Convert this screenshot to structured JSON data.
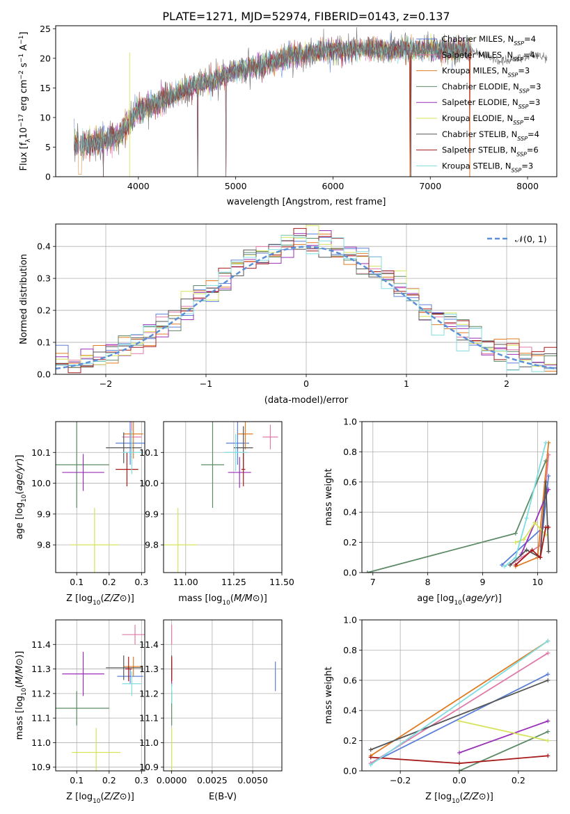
{
  "figure": {
    "title": "PLATE=1271, MJD=52974, FIBERID=0143, z=0.137"
  },
  "colors": {
    "Chabrier MILES": "#5b7fd8",
    "Salpeter MILES": "#e07aa8",
    "Kroupa MILES": "#e07b22",
    "Chabrier ELODIE": "#5c8a66",
    "Salpeter ELODIE": "#9a2fb8",
    "Kroupa ELODIE": "#d6e35a",
    "Chabrier STELIB": "#555555",
    "Salpeter STELIB": "#a81a1a",
    "Kroupa STELIB": "#7fdde0"
  },
  "legend_spectrum": [
    {
      "base": "Chabrier MILES, N",
      "sub": "SSP",
      "tail": "=4",
      "model": "Chabrier MILES"
    },
    {
      "base": "Salpeter MILES, N",
      "sub": "SSP",
      "tail": "=4",
      "model": "Salpeter MILES"
    },
    {
      "base": "Kroupa MILES, N",
      "sub": "SSP",
      "tail": "=3",
      "model": "Kroupa MILES"
    },
    {
      "base": "Chabrier ELODIE, N",
      "sub": "SSP",
      "tail": "=3",
      "model": "Chabrier ELODIE"
    },
    {
      "base": "Salpeter ELODIE, N",
      "sub": "SSP",
      "tail": "=3",
      "model": "Salpeter ELODIE"
    },
    {
      "base": "Kroupa ELODIE, N",
      "sub": "SSP",
      "tail": "=4",
      "model": "Kroupa ELODIE"
    },
    {
      "base": "Chabrier STELIB, N",
      "sub": "SSP",
      "tail": "=4",
      "model": "Chabrier STELIB"
    },
    {
      "base": "Salpeter STELIB, N",
      "sub": "SSP",
      "tail": "=6",
      "model": "Salpeter STELIB"
    },
    {
      "base": "Kroupa STELIB, N",
      "sub": "SSP",
      "tail": "=3",
      "model": "Kroupa STELIB"
    }
  ],
  "chart_data": [
    {
      "id": "spectrum",
      "type": "line",
      "xlabel": "wavelength [Angstrom, rest frame]",
      "ylabel_parts": [
        "Flux [f",
        "λ",
        "10",
        "−17",
        " erg cm",
        "−2",
        " s",
        "−1",
        " A",
        "−1",
        "]"
      ],
      "xlim": [
        3150,
        8300
      ],
      "ylim": [
        0,
        25.5
      ],
      "xticks": [
        4000,
        5000,
        6000,
        7000,
        8000
      ],
      "yticks": [
        0,
        5,
        10,
        15,
        20,
        25
      ],
      "grid": false,
      "legend_position": "top-right",
      "continuum_knots": [
        [
          3340,
          5.5
        ],
        [
          3500,
          5.5
        ],
        [
          3600,
          6
        ],
        [
          3700,
          6.5
        ],
        [
          3800,
          7
        ],
        [
          3900,
          9
        ],
        [
          4000,
          11
        ],
        [
          4200,
          12.5
        ],
        [
          4400,
          14
        ],
        [
          4600,
          15.5
        ],
        [
          4800,
          16.5
        ],
        [
          5000,
          17.8
        ],
        [
          5200,
          18.5
        ],
        [
          5400,
          19.5
        ],
        [
          5600,
          20.5
        ],
        [
          5800,
          21
        ],
        [
          6000,
          21.5
        ],
        [
          6200,
          21.5
        ],
        [
          6400,
          21.5
        ],
        [
          6600,
          21.5
        ],
        [
          6800,
          21.5
        ],
        [
          7000,
          21.5
        ],
        [
          7200,
          21.5
        ],
        [
          7400,
          21.5
        ]
      ],
      "observed_extension": [
        [
          7400,
          21.5
        ],
        [
          7600,
          20.5
        ],
        [
          7700,
          19.5
        ],
        [
          7800,
          19.5
        ],
        [
          7900,
          20
        ],
        [
          8000,
          20.5
        ],
        [
          8100,
          20.5
        ],
        [
          8200,
          20
        ]
      ]
    },
    {
      "id": "residuals",
      "type": "line",
      "xlabel": "(data-model)/error",
      "ylabel": "Normed distribution",
      "xlim": [
        -2.5,
        2.5
      ],
      "ylim": [
        0,
        0.47
      ],
      "xticks": [
        -2,
        -1,
        0,
        1,
        2
      ],
      "yticks": [
        0.0,
        0.1,
        0.2,
        0.3,
        0.4
      ],
      "grid": true,
      "legend": "𝒩(0, 1)",
      "legend_position": "top-right",
      "reference": {
        "name": "𝒩(0, 1)",
        "mean": 0,
        "sigma": 1,
        "color": "#5b8fd8"
      }
    },
    {
      "id": "Z-age",
      "type": "scatter",
      "xlabel": "Z [log10(Z/Z⊙)]",
      "ylabel": "age [log10(age/yr)]",
      "xlim": [
        0.035,
        0.31
      ],
      "ylim": [
        9.71,
        10.2
      ],
      "xticks": [
        0.1,
        0.2,
        0.3
      ],
      "yticks": [
        9.8,
        9.9,
        10.0,
        10.1
      ],
      "grid": true,
      "points": [
        {
          "model": "Chabrier MILES",
          "x": 0.265,
          "y": 10.13,
          "xerr": 0.045,
          "yerr": 0.07
        },
        {
          "model": "Salpeter MILES",
          "x": 0.27,
          "y": 10.15,
          "xerr": 0.03,
          "yerr": 0.07
        },
        {
          "model": "Kroupa MILES",
          "x": 0.275,
          "y": 10.16,
          "xerr": 0.03,
          "yerr": 0.08
        },
        {
          "model": "Chabrier ELODIE",
          "x": 0.1,
          "y": 10.06,
          "xerr": 0.1,
          "yerr": 0.14
        },
        {
          "model": "Salpeter ELODIE",
          "x": 0.12,
          "y": 10.035,
          "xerr": 0.065,
          "yerr": 0.06
        },
        {
          "model": "Kroupa ELODIE",
          "x": 0.155,
          "y": 9.8,
          "xerr": 0.075,
          "yerr": 0.12
        },
        {
          "model": "Chabrier STELIB",
          "x": 0.245,
          "y": 10.115,
          "xerr": 0.055,
          "yerr": 0.05
        },
        {
          "model": "Salpeter STELIB",
          "x": 0.255,
          "y": 10.045,
          "xerr": 0.035,
          "yerr": 0.055
        },
        {
          "model": "Kroupa STELIB",
          "x": 0.27,
          "y": 10.1,
          "xerr": 0.03,
          "yerr": 0.07
        }
      ]
    },
    {
      "id": "mass-age",
      "type": "scatter",
      "xlabel": "mass [log10(M/M⊙)]",
      "ylabel": "",
      "xlim": [
        10.885,
        11.5
      ],
      "ylim": [
        9.71,
        10.2
      ],
      "xticks": [
        11.0,
        11.25,
        11.5
      ],
      "yticks": [
        9.8,
        9.9,
        10.0,
        10.1
      ],
      "grid": true,
      "points": [
        {
          "model": "Chabrier MILES",
          "x": 11.27,
          "y": 10.13,
          "xerr": 0.06,
          "yerr": 0.07
        },
        {
          "model": "Salpeter MILES",
          "x": 11.44,
          "y": 10.15,
          "xerr": 0.04,
          "yerr": 0.04
        },
        {
          "model": "Kroupa MILES",
          "x": 11.31,
          "y": 10.16,
          "xerr": 0.04,
          "yerr": 0.05
        },
        {
          "model": "Chabrier ELODIE",
          "x": 11.14,
          "y": 10.06,
          "xerr": 0.06,
          "yerr": 0.14
        },
        {
          "model": "Salpeter ELODIE",
          "x": 11.28,
          "y": 10.035,
          "xerr": 0.06,
          "yerr": 0.05
        },
        {
          "model": "Kroupa ELODIE",
          "x": 10.96,
          "y": 9.8,
          "xerr": 0.1,
          "yerr": 0.12
        },
        {
          "model": "Chabrier STELIB",
          "x": 11.3,
          "y": 10.115,
          "xerr": 0.05,
          "yerr": 0.07
        },
        {
          "model": "Salpeter STELIB",
          "x": 11.3,
          "y": 10.045,
          "xerr": 0.01,
          "yerr": 0.055
        },
        {
          "model": "Kroupa STELIB",
          "x": 11.26,
          "y": 10.1,
          "xerr": 0.06,
          "yerr": 0.06
        }
      ]
    },
    {
      "id": "age-weight",
      "type": "line",
      "xlabel": "age [log10(age/yr)]",
      "ylabel": "mass weight",
      "xlim": [
        6.8,
        10.35
      ],
      "ylim": [
        0,
        1.0
      ],
      "xticks": [
        7,
        8,
        9,
        10
      ],
      "yticks": [
        0.0,
        0.2,
        0.4,
        0.6,
        0.8,
        1.0
      ],
      "grid": true,
      "series": [
        {
          "model": "Chabrier MILES",
          "points": [
            [
              9.35,
              0.05
            ],
            [
              10.1,
              0.3
            ],
            [
              10.2,
              0.64
            ]
          ]
        },
        {
          "model": "Salpeter MILES",
          "points": [
            [
              9.5,
              0.05
            ],
            [
              10.05,
              0.18
            ],
            [
              10.2,
              0.78
            ]
          ]
        },
        {
          "model": "Kroupa MILES",
          "points": [
            [
              9.6,
              0.04
            ],
            [
              10.0,
              0.1
            ],
            [
              10.2,
              0.86
            ]
          ]
        },
        {
          "model": "Chabrier ELODIE",
          "points": [
            [
              6.9,
              0.0
            ],
            [
              9.6,
              0.26
            ],
            [
              10.15,
              0.74
            ]
          ]
        },
        {
          "model": "Salpeter ELODIE",
          "points": [
            [
              9.7,
              0.12
            ],
            [
              9.95,
              0.33
            ],
            [
              10.2,
              0.55
            ]
          ]
        },
        {
          "model": "Kroupa ELODIE",
          "points": [
            [
              9.6,
              0.2
            ],
            [
              9.75,
              0.22
            ],
            [
              9.95,
              0.33
            ],
            [
              10.15,
              0.25
            ]
          ]
        },
        {
          "model": "Chabrier STELIB",
          "points": [
            [
              9.5,
              0.05
            ],
            [
              9.8,
              0.15
            ],
            [
              10.05,
              0.1
            ],
            [
              10.15,
              0.6
            ],
            [
              10.2,
              0.14
            ]
          ]
        },
        {
          "model": "Salpeter STELIB",
          "points": [
            [
              9.6,
              0.05
            ],
            [
              9.9,
              0.15
            ],
            [
              10.05,
              0.1
            ],
            [
              10.15,
              0.3
            ],
            [
              10.2,
              0.3
            ]
          ]
        },
        {
          "model": "Kroupa STELIB",
          "points": [
            [
              9.4,
              0.04
            ],
            [
              9.6,
              0.1
            ],
            [
              9.8,
              0.36
            ],
            [
              10.15,
              0.86
            ]
          ]
        }
      ]
    },
    {
      "id": "Z-mass",
      "type": "scatter",
      "xlabel": "Z [log10(Z/Z⊙)]",
      "ylabel": "mass [log10(M/M⊙)]",
      "xlim": [
        0.035,
        0.31
      ],
      "ylim": [
        10.885,
        11.5
      ],
      "xticks": [
        0.1,
        0.2,
        0.3
      ],
      "yticks": [
        10.9,
        11.0,
        11.1,
        11.2,
        11.3,
        11.4
      ],
      "grid": true,
      "points": [
        {
          "model": "Chabrier MILES",
          "x": 0.265,
          "y": 11.27,
          "xerr": 0.04,
          "yerr": 0.03
        },
        {
          "model": "Salpeter MILES",
          "x": 0.28,
          "y": 11.44,
          "xerr": 0.04,
          "yerr": 0.04
        },
        {
          "model": "Kroupa MILES",
          "x": 0.275,
          "y": 11.31,
          "xerr": 0.03,
          "yerr": 0.04
        },
        {
          "model": "Chabrier ELODIE",
          "x": 0.1,
          "y": 11.14,
          "xerr": 0.1,
          "yerr": 0.07
        },
        {
          "model": "Salpeter ELODIE",
          "x": 0.12,
          "y": 11.28,
          "xerr": 0.065,
          "yerr": 0.09
        },
        {
          "model": "Kroupa ELODIE",
          "x": 0.16,
          "y": 10.96,
          "xerr": 0.075,
          "yerr": 0.1
        },
        {
          "model": "Chabrier STELIB",
          "x": 0.245,
          "y": 11.305,
          "xerr": 0.055,
          "yerr": 0.05
        },
        {
          "model": "Salpeter STELIB",
          "x": 0.26,
          "y": 11.3,
          "xerr": 0.01,
          "yerr": 0.05
        },
        {
          "model": "Kroupa STELIB",
          "x": 0.27,
          "y": 11.24,
          "xerr": 0.03,
          "yerr": 0.05
        }
      ]
    },
    {
      "id": "EBV-mass",
      "type": "scatter",
      "xlabel": "E(B-V)",
      "ylabel": "",
      "xlim": [
        -0.0005,
        0.0068
      ],
      "ylim": [
        10.885,
        11.5
      ],
      "xtick_values": [
        0.0,
        0.0025,
        0.005
      ],
      "xtick_labels": [
        "0.0000",
        "0.0025",
        "0.0050"
      ],
      "yticks": [
        10.9,
        11.0,
        11.1,
        11.2,
        11.3,
        11.4
      ],
      "grid": true,
      "points": [
        {
          "model": "Chabrier MILES",
          "x": 0.0064,
          "y": 11.27,
          "xerr": 0.0,
          "yerr": 0.06
        },
        {
          "model": "Salpeter MILES",
          "x": 0.0,
          "y": 11.44,
          "xerr": 0.0,
          "yerr": 0.04
        },
        {
          "model": "Kroupa MILES",
          "x": 0.0,
          "y": 11.31,
          "xerr": 0.0,
          "yerr": 0.03
        },
        {
          "model": "Chabrier ELODIE",
          "x": 0.0,
          "y": 11.14,
          "xerr": 0.0,
          "yerr": 0.07
        },
        {
          "model": "Salpeter ELODIE",
          "x": 0.0,
          "y": 11.28,
          "xerr": 0.0,
          "yerr": 0.05
        },
        {
          "model": "Kroupa ELODIE",
          "x": 0.0,
          "y": 10.96,
          "xerr": 0.0,
          "yerr": 0.1
        },
        {
          "model": "Chabrier STELIB",
          "x": 0.0,
          "y": 11.305,
          "xerr": 0.0,
          "yerr": 0.05
        },
        {
          "model": "Salpeter STELIB",
          "x": 0.0,
          "y": 11.3,
          "xerr": 0.0,
          "yerr": 0.05
        },
        {
          "model": "Kroupa STELIB",
          "x": 0.0,
          "y": 11.2,
          "xerr": 0.0,
          "yerr": 0.04
        }
      ]
    },
    {
      "id": "Z-weight",
      "type": "line",
      "xlabel": "Z [log10(Z/Z⊙)]",
      "ylabel": "mass weight",
      "xlim": [
        -0.33,
        0.33
      ],
      "ylim": [
        0,
        1.0
      ],
      "xticks": [
        -0.2,
        0.0,
        0.2
      ],
      "yticks": [
        0.0,
        0.2,
        0.4,
        0.6,
        0.8,
        1.0
      ],
      "grid": true,
      "series": [
        {
          "model": "Chabrier MILES",
          "points": [
            [
              -0.3,
              0.05
            ],
            [
              0.3,
              0.64
            ]
          ]
        },
        {
          "model": "Salpeter MILES",
          "points": [
            [
              -0.3,
              0.05
            ],
            [
              0.3,
              0.78
            ]
          ]
        },
        {
          "model": "Kroupa MILES",
          "points": [
            [
              -0.3,
              0.1
            ],
            [
              0.3,
              0.86
            ]
          ]
        },
        {
          "model": "Chabrier ELODIE",
          "points": [
            [
              0.0,
              0.0
            ],
            [
              0.3,
              0.26
            ]
          ]
        },
        {
          "model": "Salpeter ELODIE",
          "points": [
            [
              0.0,
              0.12
            ],
            [
              0.3,
              0.33
            ]
          ]
        },
        {
          "model": "Kroupa ELODIE",
          "points": [
            [
              0.0,
              0.33
            ],
            [
              0.3,
              0.2
            ]
          ]
        },
        {
          "model": "Chabrier STELIB",
          "points": [
            [
              -0.3,
              0.14
            ],
            [
              0.3,
              0.6
            ]
          ]
        },
        {
          "model": "Salpeter STELIB",
          "points": [
            [
              -0.3,
              0.09
            ],
            [
              0.0,
              0.05
            ],
            [
              0.3,
              0.1
            ]
          ]
        },
        {
          "model": "Kroupa STELIB",
          "points": [
            [
              -0.3,
              0.04
            ],
            [
              0.3,
              0.86
            ]
          ]
        }
      ]
    }
  ]
}
